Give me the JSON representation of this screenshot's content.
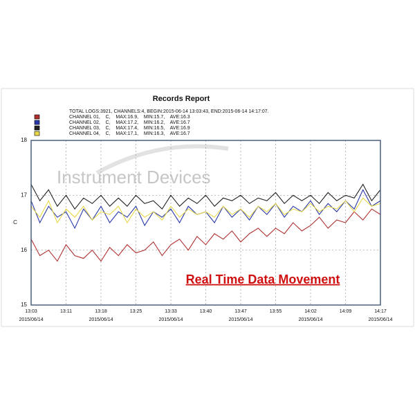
{
  "chart_data": {
    "type": "line",
    "title": "Records Report",
    "summary": "TOTAL LOGS:3921, CHANNELS:4, BEGIN:2015-06-14 13:03:43, END:2015-06-14 14:17:07.",
    "y_label": "C",
    "watermark": "Instrument Devices",
    "annotation": "Real Time Data Movement",
    "categories": [
      "13:03",
      null,
      null,
      null,
      "13:11",
      null,
      null,
      null,
      "13:18",
      null,
      null,
      null,
      "13:25",
      null,
      null,
      null,
      "13:33",
      null,
      null,
      null,
      "13:40",
      null,
      null,
      null,
      "13:47",
      null,
      null,
      null,
      "13:55",
      null,
      null,
      null,
      "14:02",
      null,
      null,
      null,
      "14:09",
      null,
      null,
      null,
      "14:17"
    ],
    "date_labels": [
      "2015/06/14",
      null,
      null,
      null,
      null,
      null,
      null,
      null,
      "2015/06/14",
      null,
      null,
      null,
      null,
      null,
      null,
      null,
      "2015/06/14",
      null,
      null,
      null,
      null,
      null,
      null,
      null,
      "2015/06/14",
      null,
      null,
      null,
      null,
      null,
      null,
      null,
      "2015/06/14",
      null,
      null,
      null,
      null,
      null,
      null,
      null,
      "2015/06/14"
    ],
    "ylim": [
      15,
      18
    ],
    "yticks": [
      15,
      16,
      17,
      18
    ],
    "grid": true,
    "series": [
      {
        "name": "CHANNEL 01,    C,    MAX:16.9,    MIN:15.7,    AVE:16.3",
        "color": "#b03030",
        "values": [
          16.2,
          15.9,
          16.0,
          15.8,
          16.1,
          15.9,
          15.85,
          16.0,
          15.8,
          16.05,
          15.9,
          16.1,
          15.95,
          16.0,
          16.15,
          15.9,
          16.1,
          16.2,
          16.0,
          16.25,
          16.1,
          16.3,
          16.2,
          16.35,
          16.15,
          16.3,
          16.4,
          16.25,
          16.4,
          16.3,
          16.5,
          16.35,
          16.45,
          16.6,
          16.4,
          16.55,
          16.5,
          16.7,
          16.55,
          16.75,
          16.65
        ]
      },
      {
        "name": "CHANNEL 02,    C,    MAX:17.2,    MIN:16.2,    AVE:16.7",
        "color": "#2838a8",
        "values": [
          16.9,
          16.5,
          16.8,
          16.6,
          16.7,
          16.4,
          16.75,
          16.55,
          16.8,
          16.5,
          16.7,
          16.6,
          16.8,
          16.45,
          16.7,
          16.6,
          16.75,
          16.5,
          16.8,
          16.65,
          16.7,
          16.5,
          16.8,
          16.6,
          16.75,
          16.55,
          16.8,
          16.65,
          16.85,
          16.6,
          16.8,
          16.7,
          16.9,
          16.65,
          16.85,
          16.7,
          16.9,
          16.75,
          17.1,
          16.8,
          16.9
        ]
      },
      {
        "name": "CHANNEL 03,    C,    MAX:17.4,    MIN:16.5,    AVE:16.9",
        "color": "#222222",
        "values": [
          17.2,
          16.9,
          17.1,
          16.8,
          17.0,
          16.75,
          16.95,
          16.85,
          17.0,
          16.8,
          16.95,
          16.8,
          17.0,
          16.85,
          16.9,
          16.75,
          17.0,
          16.8,
          16.95,
          16.85,
          17.0,
          16.8,
          16.95,
          16.9,
          17.0,
          16.85,
          16.95,
          16.9,
          17.05,
          16.85,
          17.0,
          16.9,
          17.0,
          16.85,
          17.05,
          16.9,
          17.0,
          16.95,
          17.2,
          16.9,
          17.1
        ]
      },
      {
        "name": "CHANNEL 04,    C,    MAX:17.1,    MIN:16.3,    AVE:16.7",
        "color": "#e8d84a",
        "values": [
          16.8,
          16.6,
          16.9,
          16.5,
          16.75,
          16.6,
          16.8,
          16.55,
          16.7,
          16.65,
          16.8,
          16.5,
          16.75,
          16.6,
          16.7,
          16.55,
          16.8,
          16.6,
          16.75,
          16.65,
          16.7,
          16.6,
          16.8,
          16.65,
          16.75,
          16.6,
          16.8,
          16.7,
          16.85,
          16.65,
          16.75,
          16.7,
          16.85,
          16.7,
          16.8,
          16.75,
          16.9,
          16.7,
          16.95,
          16.8,
          16.85
        ]
      }
    ]
  }
}
